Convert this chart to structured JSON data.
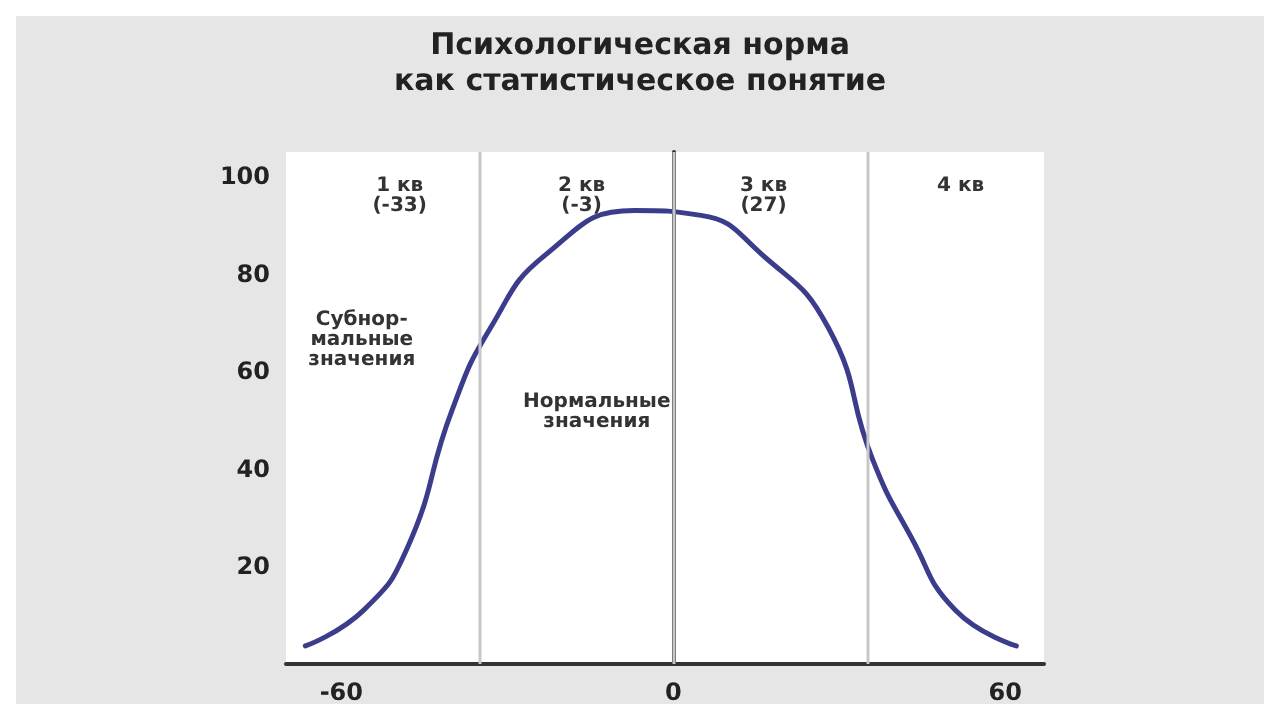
{
  "chart_data": {
    "type": "line",
    "title": "Психологическая норма\nкак статистическое понятие",
    "x": [
      -66.5,
      -56,
      -48,
      -40,
      -33,
      -23,
      -7,
      5,
      16,
      28,
      36,
      43,
      51,
      62
    ],
    "series": [
      {
        "color": "#3c3c8c",
        "values": [
          3.7,
          11,
          24,
          52,
          69,
          84,
          93,
          92,
          84,
          69,
          42,
          26,
          11,
          3.7
        ]
      }
    ],
    "xlim": [
      -70,
      67
    ],
    "xticks": [
      -60,
      0,
      60
    ],
    "ylim": [
      0,
      105
    ],
    "yticks": [
      20,
      40,
      60,
      80,
      100
    ],
    "grid": false,
    "marker": "none",
    "line_style": "solid",
    "ref_lines": [
      {
        "axis": "x",
        "value": -35,
        "color": "#c8c8c8"
      },
      {
        "axis": "x",
        "value": 0,
        "color": "#c8c8c8"
      },
      {
        "axis": "x",
        "value": 35,
        "color": "#c8c8c8"
      }
    ],
    "annotations": [
      "1 кв\n(-33)",
      "2 кв\n(-3)",
      "3 кв\n(27)",
      "4 кв",
      "Субнор-\nмальные\nзначения",
      "Нормальные\nзначения"
    ]
  }
}
